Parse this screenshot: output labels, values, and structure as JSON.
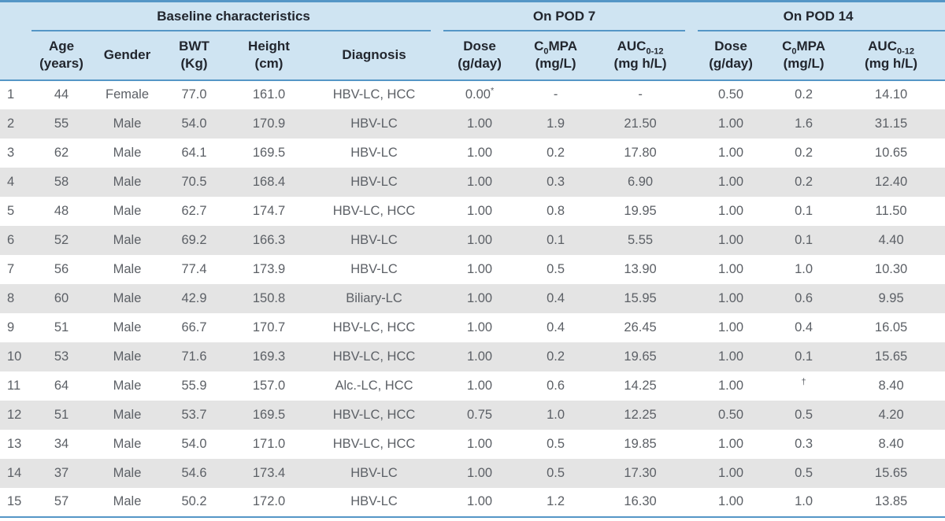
{
  "theme": {
    "header_bg": "#cfe4f2",
    "line_blue": "#5596c6",
    "stripe_gray": "#e4e4e4",
    "header_text": "#22262e",
    "body_text": "#5c6066"
  },
  "table": {
    "groups": [
      {
        "label": "Baseline characteristics"
      },
      {
        "label": "On POD 7"
      },
      {
        "label": "On POD 14"
      }
    ],
    "columns": [
      {
        "key": "age",
        "pre": "Age",
        "sub": "",
        "post": "",
        "unit": "(years)"
      },
      {
        "key": "gender",
        "pre": "Gender",
        "sub": "",
        "post": "",
        "unit": ""
      },
      {
        "key": "bwt",
        "pre": "BWT",
        "sub": "",
        "post": "",
        "unit": "(Kg)"
      },
      {
        "key": "height",
        "pre": "Height",
        "sub": "",
        "post": "",
        "unit": "(cm)"
      },
      {
        "key": "diagnosis",
        "pre": "Diagnosis",
        "sub": "",
        "post": "",
        "unit": ""
      },
      {
        "key": "pod7_dose",
        "pre": "Dose",
        "sub": "",
        "post": "",
        "unit": "(g/day)"
      },
      {
        "key": "pod7_c0",
        "pre": "C",
        "sub": "0",
        "post": "MPA",
        "unit": "(mg/L)"
      },
      {
        "key": "pod7_auc",
        "pre": "AUC",
        "sub": "0-12",
        "post": "",
        "unit": "(mg h/L)"
      },
      {
        "key": "pod14_dose",
        "pre": "Dose",
        "sub": "",
        "post": "",
        "unit": "(g/day)"
      },
      {
        "key": "pod14_c0",
        "pre": "C",
        "sub": "0",
        "post": "MPA",
        "unit": "(mg/L)"
      },
      {
        "key": "pod14_auc",
        "pre": "AUC",
        "sub": "0-12",
        "post": "",
        "unit": "(mg h/L)"
      }
    ],
    "rows": [
      {
        "num": "1",
        "age": "44",
        "gender": "Female",
        "bwt": "77.0",
        "height": "161.0",
        "diagnosis": "HBV-LC, HCC",
        "pod7_dose": "0.00",
        "pod7_dose_sup": "*",
        "pod7_c0": "-",
        "pod7_auc": "-",
        "pod14_dose": "0.50",
        "pod14_c0": "0.2",
        "pod14_auc": "14.10"
      },
      {
        "num": "2",
        "age": "55",
        "gender": "Male",
        "bwt": "54.0",
        "height": "170.9",
        "diagnosis": "HBV-LC",
        "pod7_dose": "1.00",
        "pod7_c0": "1.9",
        "pod7_auc": "21.50",
        "pod14_dose": "1.00",
        "pod14_c0": "1.6",
        "pod14_auc": "31.15"
      },
      {
        "num": "3",
        "age": "62",
        "gender": "Male",
        "bwt": "64.1",
        "height": "169.5",
        "diagnosis": "HBV-LC",
        "pod7_dose": "1.00",
        "pod7_c0": "0.2",
        "pod7_auc": "17.80",
        "pod14_dose": "1.00",
        "pod14_c0": "0.2",
        "pod14_auc": "10.65"
      },
      {
        "num": "4",
        "age": "58",
        "gender": "Male",
        "bwt": "70.5",
        "height": "168.4",
        "diagnosis": "HBV-LC",
        "pod7_dose": "1.00",
        "pod7_c0": "0.3",
        "pod7_auc": "6.90",
        "pod14_dose": "1.00",
        "pod14_c0": "0.2",
        "pod14_auc": "12.40"
      },
      {
        "num": "5",
        "age": "48",
        "gender": "Male",
        "bwt": "62.7",
        "height": "174.7",
        "diagnosis": "HBV-LC, HCC",
        "pod7_dose": "1.00",
        "pod7_c0": "0.8",
        "pod7_auc": "19.95",
        "pod14_dose": "1.00",
        "pod14_c0": "0.1",
        "pod14_auc": "11.50"
      },
      {
        "num": "6",
        "age": "52",
        "gender": "Male",
        "bwt": "69.2",
        "height": "166.3",
        "diagnosis": "HBV-LC",
        "pod7_dose": "1.00",
        "pod7_c0": "0.1",
        "pod7_auc": "5.55",
        "pod14_dose": "1.00",
        "pod14_c0": "0.1",
        "pod14_auc": "4.40"
      },
      {
        "num": "7",
        "age": "56",
        "gender": "Male",
        "bwt": "77.4",
        "height": "173.9",
        "diagnosis": "HBV-LC",
        "pod7_dose": "1.00",
        "pod7_c0": "0.5",
        "pod7_auc": "13.90",
        "pod14_dose": "1.00",
        "pod14_c0": "1.0",
        "pod14_auc": "10.30"
      },
      {
        "num": "8",
        "age": "60",
        "gender": "Male",
        "bwt": "42.9",
        "height": "150.8",
        "diagnosis": "Biliary-LC",
        "pod7_dose": "1.00",
        "pod7_c0": "0.4",
        "pod7_auc": "15.95",
        "pod14_dose": "1.00",
        "pod14_c0": "0.6",
        "pod14_auc": "9.95"
      },
      {
        "num": "9",
        "age": "51",
        "gender": "Male",
        "bwt": "66.7",
        "height": "170.7",
        "diagnosis": "HBV-LC, HCC",
        "pod7_dose": "1.00",
        "pod7_c0": "0.4",
        "pod7_auc": "26.45",
        "pod14_dose": "1.00",
        "pod14_c0": "0.4",
        "pod14_auc": "16.05"
      },
      {
        "num": "10",
        "age": "53",
        "gender": "Male",
        "bwt": "71.6",
        "height": "169.3",
        "diagnosis": "HBV-LC, HCC",
        "pod7_dose": "1.00",
        "pod7_c0": "0.2",
        "pod7_auc": "19.65",
        "pod14_dose": "1.00",
        "pod14_c0": "0.1",
        "pod14_auc": "15.65"
      },
      {
        "num": "11",
        "age": "64",
        "gender": "Male",
        "bwt": "55.9",
        "height": "157.0",
        "diagnosis": "Alc.-LC, HCC",
        "pod7_dose": "1.00",
        "pod7_c0": "0.6",
        "pod7_auc": "14.25",
        "pod14_dose": "1.00",
        "pod14_c0": "",
        "pod14_c0_sup": "†",
        "pod14_auc": "8.40"
      },
      {
        "num": "12",
        "age": "51",
        "gender": "Male",
        "bwt": "53.7",
        "height": "169.5",
        "diagnosis": "HBV-LC, HCC",
        "pod7_dose": "0.75",
        "pod7_c0": "1.0",
        "pod7_auc": "12.25",
        "pod14_dose": "0.50",
        "pod14_c0": "0.5",
        "pod14_auc": "4.20"
      },
      {
        "num": "13",
        "age": "34",
        "gender": "Male",
        "bwt": "54.0",
        "height": "171.0",
        "diagnosis": "HBV-LC, HCC",
        "pod7_dose": "1.00",
        "pod7_c0": "0.5",
        "pod7_auc": "19.85",
        "pod14_dose": "1.00",
        "pod14_c0": "0.3",
        "pod14_auc": "8.40"
      },
      {
        "num": "14",
        "age": "37",
        "gender": "Male",
        "bwt": "54.6",
        "height": "173.4",
        "diagnosis": "HBV-LC",
        "pod7_dose": "1.00",
        "pod7_c0": "0.5",
        "pod7_auc": "17.30",
        "pod14_dose": "1.00",
        "pod14_c0": "0.5",
        "pod14_auc": "15.65"
      },
      {
        "num": "15",
        "age": "57",
        "gender": "Male",
        "bwt": "50.2",
        "height": "172.0",
        "diagnosis": "HBV-LC",
        "pod7_dose": "1.00",
        "pod7_c0": "1.2",
        "pod7_auc": "16.30",
        "pod14_dose": "1.00",
        "pod14_c0": "1.0",
        "pod14_auc": "13.85"
      }
    ]
  }
}
